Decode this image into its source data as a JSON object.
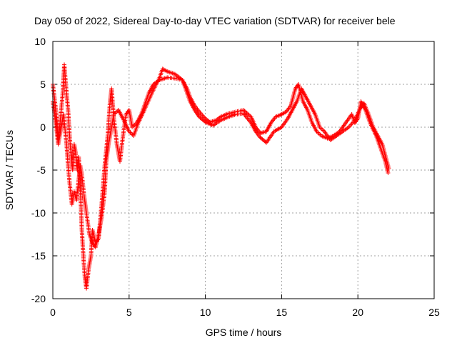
{
  "chart_data": {
    "type": "scatter",
    "title": "Day 050 of 2022, Sidereal Day-to-day VTEC variation (SDTVAR) for receiver bele",
    "xlabel": "GPS time / hours",
    "ylabel": "SDTVAR / TECUs",
    "xlim": [
      0,
      25
    ],
    "ylim": [
      -20,
      10
    ],
    "xticks": [
      "0",
      "5",
      "10",
      "15",
      "20",
      "25"
    ],
    "yticks": [
      "-20",
      "-15",
      "-10",
      "-5",
      "0",
      "5",
      "10"
    ],
    "grid": true,
    "marker": "+",
    "series_color": "#ff0000",
    "series": [
      {
        "name": "SDTVAR",
        "tracks": [
          [
            [
              0.0,
              5.0
            ],
            [
              0.2,
              2.0
            ],
            [
              0.35,
              -1.5
            ],
            [
              0.5,
              1.0
            ],
            [
              0.65,
              4.0
            ],
            [
              0.75,
              7.3
            ],
            [
              0.85,
              5.0
            ],
            [
              1.0,
              2.0
            ],
            [
              1.1,
              -1.0
            ],
            [
              1.2,
              -3.5
            ],
            [
              1.3,
              -5.0
            ],
            [
              1.4,
              -2.0
            ],
            [
              1.5,
              -3.0
            ],
            [
              1.6,
              -5.0
            ],
            [
              1.7,
              -3.5
            ],
            [
              1.8,
              -7.0
            ],
            [
              1.9,
              -12.0
            ],
            [
              2.0,
              -15.0
            ],
            [
              2.1,
              -17.5
            ],
            [
              2.2,
              -18.8
            ],
            [
              2.35,
              -16.5
            ],
            [
              2.5,
              -15.0
            ],
            [
              2.6,
              -12.0
            ],
            [
              2.8,
              -13.5
            ],
            [
              3.0,
              -13.0
            ],
            [
              3.2,
              -9.0
            ],
            [
              3.4,
              -4.5
            ],
            [
              3.6,
              -1.0
            ],
            [
              3.75,
              3.0
            ],
            [
              3.85,
              4.5
            ],
            [
              4.0,
              1.0
            ],
            [
              4.2,
              -2.0
            ],
            [
              4.4,
              -4.0
            ],
            [
              4.6,
              -1.0
            ],
            [
              4.8,
              1.5
            ],
            [
              5.0,
              2.0
            ],
            [
              5.2,
              0.0
            ],
            [
              5.5,
              0.5
            ],
            [
              5.8,
              1.5
            ],
            [
              6.0,
              2.5
            ],
            [
              6.3,
              4.0
            ],
            [
              6.6,
              5.0
            ],
            [
              7.0,
              5.5
            ],
            [
              7.5,
              5.8
            ],
            [
              8.0,
              5.7
            ],
            [
              8.5,
              5.5
            ],
            [
              8.8,
              4.5
            ],
            [
              9.0,
              3.5
            ],
            [
              9.3,
              2.5
            ],
            [
              9.6,
              1.8
            ],
            [
              10.0,
              1.0
            ],
            [
              10.3,
              0.6
            ],
            [
              10.7,
              0.8
            ],
            [
              11.0,
              1.2
            ],
            [
              11.5,
              1.6
            ],
            [
              12.0,
              1.8
            ],
            [
              12.5,
              2.0
            ],
            [
              13.0,
              1.2
            ],
            [
              13.3,
              0.0
            ],
            [
              13.6,
              -0.7
            ],
            [
              14.0,
              -0.5
            ],
            [
              14.3,
              0.5
            ],
            [
              14.6,
              1.2
            ],
            [
              15.0,
              1.5
            ],
            [
              15.3,
              1.8
            ],
            [
              15.6,
              2.5
            ],
            [
              15.9,
              4.5
            ],
            [
              16.1,
              5.0
            ],
            [
              16.4,
              3.0
            ],
            [
              16.7,
              2.0
            ],
            [
              17.0,
              0.5
            ],
            [
              17.3,
              -0.5
            ],
            [
              17.6,
              -1.0
            ],
            [
              18.0,
              -1.3
            ],
            [
              18.4,
              -1.0
            ],
            [
              18.8,
              -0.5
            ],
            [
              19.2,
              0.5
            ],
            [
              19.6,
              1.5
            ],
            [
              19.8,
              0.5
            ],
            [
              20.0,
              1.0
            ],
            [
              20.2,
              3.0
            ],
            [
              20.5,
              2.0
            ],
            [
              20.8,
              0.5
            ],
            [
              21.2,
              -1.0
            ],
            [
              21.5,
              -2.5
            ],
            [
              21.8,
              -4.0
            ],
            [
              22.0,
              -5.5
            ]
          ],
          [
            [
              0.0,
              3.0
            ],
            [
              0.2,
              0.5
            ],
            [
              0.35,
              -2.0
            ],
            [
              0.5,
              -0.5
            ],
            [
              0.7,
              1.5
            ],
            [
              0.9,
              -2.0
            ],
            [
              1.0,
              -4.5
            ],
            [
              1.1,
              -6.5
            ],
            [
              1.25,
              -9.0
            ],
            [
              1.4,
              -7.5
            ],
            [
              1.55,
              -8.5
            ],
            [
              1.7,
              -6.0
            ],
            [
              1.8,
              -4.5
            ],
            [
              1.9,
              -5.5
            ],
            [
              2.05,
              -8.0
            ],
            [
              2.2,
              -10.0
            ],
            [
              2.4,
              -12.5
            ],
            [
              2.6,
              -13.5
            ],
            [
              2.8,
              -14.0
            ],
            [
              3.0,
              -12.5
            ],
            [
              3.2,
              -10.5
            ],
            [
              3.4,
              -7.5
            ],
            [
              3.5,
              -4.0
            ],
            [
              3.65,
              -2.0
            ],
            [
              3.8,
              -0.5
            ],
            [
              4.0,
              1.5
            ],
            [
              4.3,
              2.0
            ],
            [
              4.6,
              1.0
            ],
            [
              5.0,
              -0.5
            ],
            [
              5.3,
              -1.0
            ],
            [
              5.6,
              0.5
            ],
            [
              6.0,
              2.0
            ],
            [
              6.5,
              4.0
            ],
            [
              7.0,
              5.8
            ],
            [
              7.2,
              6.8
            ],
            [
              7.5,
              6.5
            ],
            [
              8.0,
              6.2
            ],
            [
              8.5,
              5.5
            ],
            [
              8.8,
              4.0
            ],
            [
              9.0,
              3.0
            ],
            [
              9.3,
              2.0
            ],
            [
              9.6,
              1.2
            ],
            [
              10.0,
              0.6
            ],
            [
              10.5,
              0.2
            ],
            [
              11.0,
              0.8
            ],
            [
              11.5,
              1.2
            ],
            [
              12.0,
              1.5
            ],
            [
              12.5,
              1.6
            ],
            [
              13.0,
              0.5
            ],
            [
              13.3,
              -0.5
            ],
            [
              13.6,
              -1.2
            ],
            [
              14.0,
              -1.8
            ],
            [
              14.5,
              -0.5
            ],
            [
              15.0,
              0.0
            ],
            [
              15.4,
              1.0
            ],
            [
              15.7,
              2.0
            ],
            [
              16.0,
              3.0
            ],
            [
              16.3,
              4.5
            ],
            [
              16.6,
              3.5
            ],
            [
              16.9,
              2.5
            ],
            [
              17.2,
              1.5
            ],
            [
              17.5,
              0.0
            ],
            [
              17.8,
              -0.5
            ],
            [
              18.2,
              -1.5
            ],
            [
              18.6,
              -1.0
            ],
            [
              19.0,
              -0.5
            ],
            [
              19.4,
              0.0
            ],
            [
              19.8,
              0.8
            ],
            [
              20.1,
              2.0
            ],
            [
              20.4,
              2.8
            ],
            [
              20.7,
              1.5
            ],
            [
              21.0,
              0.0
            ],
            [
              21.3,
              -1.0
            ],
            [
              21.6,
              -2.0
            ],
            [
              21.9,
              -4.0
            ],
            [
              22.05,
              -5.0
            ]
          ]
        ]
      }
    ]
  }
}
